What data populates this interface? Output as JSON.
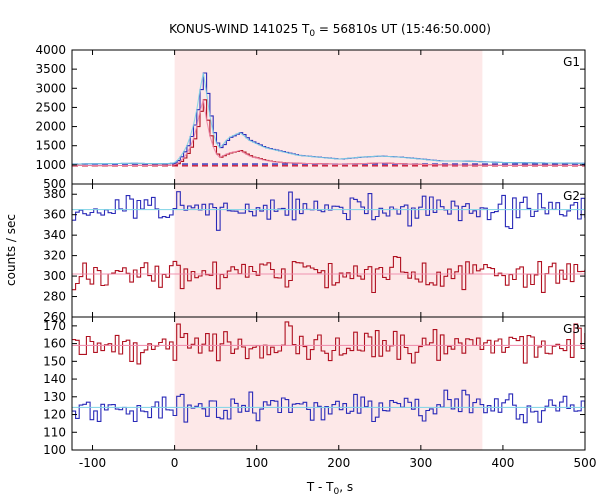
{
  "chart_data": {
    "type": "line",
    "title_parts": [
      "KONUS-WIND 141025 T",
      "0",
      " = 56810s UT (15:46:50.000)"
    ],
    "xlabel_parts": [
      "T - T",
      "0",
      ", s"
    ],
    "ylabel": "counts / sec",
    "xlim": [
      -125,
      500
    ],
    "xticks": [
      -100,
      0,
      100,
      200,
      300,
      400,
      500
    ],
    "highlight_interval": [
      0,
      375
    ],
    "colors": {
      "highlight": "#fde8e8",
      "blue": "#2a2ab8",
      "red": "#b01020",
      "fit_cyan": "#7fd4e6",
      "fit_pink": "#ee88aa",
      "bg_blue": "#2a2ab8",
      "bg_red": "#c8102e"
    },
    "panels": [
      {
        "label": "G1",
        "ylim": [
          500,
          4000
        ],
        "yticks": [
          500,
          1000,
          1500,
          2000,
          2500,
          3000,
          3500,
          4000
        ],
        "background_levels": [
          {
            "color": "bg_blue",
            "value": 1020
          },
          {
            "color": "bg_red",
            "value": 975
          }
        ],
        "series": [
          {
            "color": "blue",
            "fit": "fit_cyan",
            "x": [
              -125,
              -100,
              -50,
              -10,
              0,
              5,
              10,
              15,
              20,
              25,
              30,
              33,
              35,
              37,
              40,
              45,
              50,
              55,
              60,
              65,
              70,
              75,
              80,
              85,
              90,
              95,
              100,
              110,
              120,
              130,
              140,
              150,
              175,
              200,
              225,
              250,
              275,
              300,
              325,
              350,
              375,
              400,
              450,
              500
            ],
            "y": [
              1020,
              1030,
              1040,
              1030,
              1050,
              1150,
              1300,
              1500,
              1800,
              2200,
              2800,
              3300,
              3400,
              3200,
              2700,
              2000,
              1600,
              1450,
              1550,
              1700,
              1750,
              1800,
              1850,
              1750,
              1650,
              1600,
              1550,
              1450,
              1400,
              1350,
              1300,
              1250,
              1200,
              1150,
              1200,
              1230,
              1200,
              1150,
              1100,
              1100,
              1080,
              1060,
              1050,
              1040
            ]
          },
          {
            "color": "red",
            "fit": "fit_pink",
            "x": [
              -125,
              -100,
              -50,
              -10,
              0,
              5,
              10,
              15,
              20,
              25,
              30,
              33,
              35,
              37,
              40,
              45,
              50,
              55,
              60,
              65,
              70,
              75,
              80,
              85,
              90,
              95,
              100,
              110,
              120,
              130,
              140,
              150,
              175,
              200,
              225,
              250,
              275,
              300,
              325,
              350,
              375,
              400,
              450,
              500
            ],
            "y": [
              990,
              980,
              985,
              990,
              1000,
              1050,
              1150,
              1300,
              1500,
              1800,
              2300,
              2600,
              2700,
              2500,
              2000,
              1600,
              1300,
              1200,
              1250,
              1300,
              1330,
              1350,
              1380,
              1300,
              1250,
              1200,
              1180,
              1120,
              1080,
              1060,
              1050,
              1040,
              1030,
              1020,
              1030,
              1050,
              1030,
              1010,
              1000,
              995,
              990,
              985,
              990,
              985
            ]
          }
        ]
      },
      {
        "label": "G2",
        "ylim": [
          260,
          390
        ],
        "yticks": [
          260,
          280,
          300,
          320,
          340,
          360,
          380
        ],
        "series": [
          {
            "color": "blue",
            "fit": "fit_cyan",
            "level": 365,
            "noise": 7,
            "seed": 11
          },
          {
            "color": "red",
            "fit": "fit_pink",
            "level": 302,
            "noise": 7,
            "seed": 23
          }
        ]
      },
      {
        "label": "G3",
        "ylim": [
          100,
          175
        ],
        "yticks": [
          100,
          110,
          120,
          130,
          140,
          150,
          160,
          170
        ],
        "series": [
          {
            "color": "red",
            "fit": "fit_pink",
            "level": 159,
            "noise": 5,
            "seed": 37
          },
          {
            "color": "blue",
            "fit": "fit_cyan",
            "level": 124,
            "noise": 4,
            "seed": 51
          }
        ]
      }
    ]
  }
}
